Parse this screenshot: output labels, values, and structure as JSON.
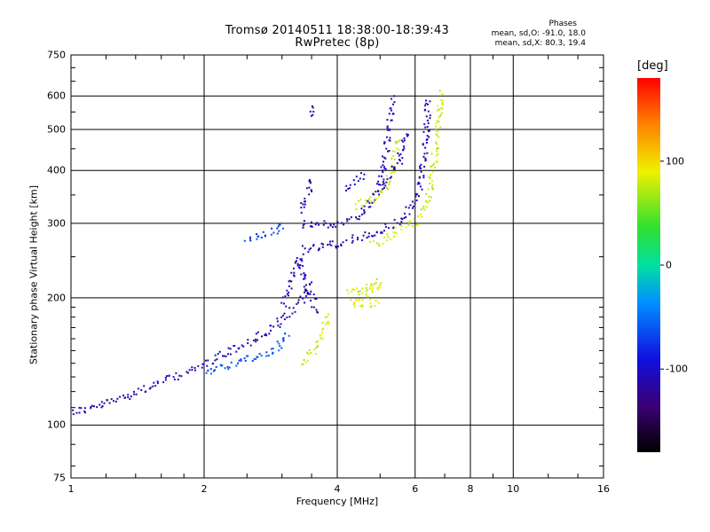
{
  "title_line1": "Tromsø 20140511 18:38:00-18:39:43",
  "title_line2": "RwPretec (8p)",
  "phases": {
    "heading": "Phases",
    "line1": "mean, sd,O: -91.0, 18.0",
    "line2": "mean, sd,X:  80.3, 19.4"
  },
  "colorbar": {
    "unit": "[deg]",
    "ticks": [
      {
        "label": "100",
        "value": 100
      },
      {
        "label": "0",
        "value": 0
      },
      {
        "label": "-100",
        "value": -100
      }
    ],
    "range": [
      -180,
      180
    ]
  },
  "chart_data": {
    "type": "scatter",
    "title": "Tromsø 20140511 18:38:00-18:39:43",
    "subtitle": "RwPretec (8p)",
    "xlabel": "Frequency [MHz]",
    "ylabel": "Stationary phase Virtual Height [km]",
    "xscale": "log",
    "yscale": "log",
    "xlim": [
      1,
      16
    ],
    "ylim": [
      75,
      750
    ],
    "x_ticks": [
      {
        "label": "1",
        "value": 1
      },
      {
        "label": "2",
        "value": 2
      },
      {
        "label": "4",
        "value": 4
      },
      {
        "label": "6",
        "value": 6
      },
      {
        "label": "8",
        "value": 8
      },
      {
        "label": "10",
        "value": 10
      },
      {
        "label": "16",
        "value": 16
      }
    ],
    "y_ticks": [
      {
        "label": "750",
        "value": 750
      },
      {
        "label": "600",
        "value": 600
      },
      {
        "label": "500",
        "value": 500
      },
      {
        "label": "400",
        "value": 400
      },
      {
        "label": "300",
        "value": 300
      },
      {
        "label": "200",
        "value": 200
      },
      {
        "label": "100",
        "value": 100
      },
      {
        "label": "75",
        "value": 75
      }
    ],
    "grid": true,
    "grid_x": [
      2,
      4,
      6,
      8,
      10
    ],
    "grid_y": [
      100,
      200,
      300,
      400,
      500,
      600
    ],
    "colorbar_label": "[deg]",
    "traces": [
      {
        "phase": -110,
        "points": [
          [
            1.0,
            108
          ],
          [
            1.1,
            110
          ],
          [
            1.2,
            113
          ],
          [
            1.3,
            117
          ],
          [
            1.45,
            122
          ],
          [
            1.6,
            127
          ],
          [
            1.8,
            133
          ],
          [
            2.0,
            140
          ],
          [
            2.2,
            148
          ],
          [
            2.5,
            157
          ],
          [
            2.8,
            168
          ],
          [
            3.0,
            178
          ],
          [
            3.2,
            190
          ],
          [
            3.4,
            205
          ],
          [
            3.5,
            220
          ]
        ]
      },
      {
        "phase": -60,
        "points": [
          [
            2.0,
            135
          ],
          [
            2.2,
            138
          ],
          [
            2.4,
            142
          ],
          [
            2.7,
            147
          ],
          [
            2.9,
            152
          ],
          [
            3.0,
            160
          ],
          [
            3.1,
            165
          ]
        ]
      },
      {
        "phase": -110,
        "points": [
          [
            3.0,
            195
          ],
          [
            3.1,
            215
          ],
          [
            3.2,
            235
          ],
          [
            3.25,
            250
          ],
          [
            3.3,
            240
          ],
          [
            3.4,
            210
          ],
          [
            3.5,
            200
          ],
          [
            3.6,
            185
          ]
        ]
      },
      {
        "phase": 80,
        "points": [
          [
            3.3,
            140
          ],
          [
            3.5,
            148
          ],
          [
            3.6,
            155
          ],
          [
            3.7,
            165
          ],
          [
            3.75,
            175
          ],
          [
            3.8,
            185
          ]
        ]
      },
      {
        "phase": -70,
        "points": [
          [
            2.5,
            275
          ],
          [
            2.7,
            282
          ],
          [
            2.9,
            292
          ],
          [
            3.0,
            300
          ]
        ]
      },
      {
        "phase": -110,
        "points": [
          [
            3.5,
            540
          ],
          [
            3.45,
            575
          ]
        ]
      },
      {
        "phase": -110,
        "points": [
          [
            3.3,
            300
          ],
          [
            3.6,
            298
          ],
          [
            3.9,
            300
          ],
          [
            4.2,
            305
          ],
          [
            4.5,
            315
          ],
          [
            4.8,
            345
          ],
          [
            5.0,
            380
          ],
          [
            5.1,
            430
          ],
          [
            5.2,
            480
          ],
          [
            5.25,
            530
          ],
          [
            5.3,
            600
          ]
        ]
      },
      {
        "phase": -110,
        "points": [
          [
            3.3,
            325
          ],
          [
            3.4,
            340
          ],
          [
            3.45,
            365
          ],
          [
            3.5,
            390
          ]
        ]
      },
      {
        "phase": -110,
        "points": [
          [
            3.3,
            260
          ],
          [
            3.6,
            265
          ],
          [
            4.0,
            270
          ],
          [
            4.4,
            278
          ],
          [
            4.8,
            285
          ],
          [
            5.2,
            295
          ],
          [
            5.6,
            310
          ],
          [
            5.9,
            330
          ],
          [
            6.1,
            360
          ],
          [
            6.2,
            400
          ],
          [
            6.3,
            460
          ],
          [
            6.35,
            530
          ],
          [
            6.4,
            600
          ]
        ]
      },
      {
        "phase": 80,
        "points": [
          [
            4.4,
            330
          ],
          [
            4.8,
            345
          ],
          [
            5.1,
            365
          ],
          [
            5.3,
            400
          ],
          [
            5.4,
            440
          ],
          [
            5.5,
            480
          ]
        ]
      },
      {
        "phase": 80,
        "points": [
          [
            4.8,
            270
          ],
          [
            5.2,
            280
          ],
          [
            5.6,
            295
          ],
          [
            6.0,
            305
          ],
          [
            6.3,
            330
          ],
          [
            6.5,
            370
          ],
          [
            6.6,
            420
          ],
          [
            6.7,
            480
          ],
          [
            6.8,
            560
          ],
          [
            6.85,
            620
          ]
        ]
      },
      {
        "phase": 80,
        "points": [
          [
            4.2,
            205
          ],
          [
            4.5,
            210
          ],
          [
            4.8,
            215
          ],
          [
            5.0,
            218
          ],
          [
            4.3,
            195
          ],
          [
            4.7,
            195
          ],
          [
            5.0,
            196
          ]
        ]
      },
      {
        "phase": -110,
        "points": [
          [
            5.0,
            360
          ],
          [
            5.2,
            390
          ],
          [
            5.5,
            420
          ],
          [
            5.6,
            460
          ],
          [
            5.7,
            500
          ]
        ]
      },
      {
        "phase": -100,
        "points": [
          [
            4.2,
            365
          ],
          [
            4.4,
            380
          ],
          [
            4.6,
            400
          ]
        ]
      }
    ]
  }
}
